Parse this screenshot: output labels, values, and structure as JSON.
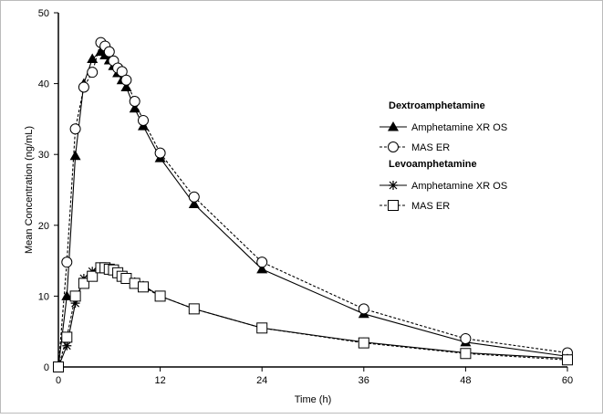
{
  "chart_data": {
    "type": "line",
    "xlabel": "Time (h)",
    "ylabel": "Mean Concentration (ng/mL)",
    "xlim": [
      0,
      60
    ],
    "ylim": [
      0,
      50
    ],
    "xticks": [
      0,
      12,
      24,
      36,
      48,
      60
    ],
    "yticks": [
      0,
      10,
      20,
      30,
      40,
      50
    ],
    "grid": false,
    "legend_placement": "right",
    "x": [
      0,
      1,
      2,
      3,
      4,
      5,
      5.5,
      6,
      6.5,
      7,
      7.5,
      8,
      9,
      10,
      12,
      16,
      24,
      36,
      48,
      60
    ],
    "groups": [
      {
        "name": "Dextroamphetamine",
        "series": [
          {
            "name": "Amphetamine XR OS",
            "marker": "filled-triangle",
            "line": "solid",
            "values": [
              0,
              10,
              29.8,
              40,
              43.5,
              44.5,
              44,
              43.3,
              42.5,
              41.5,
              40.5,
              39.5,
              36.5,
              34,
              29.5,
              23,
              13.8,
              7.5,
              3.5,
              1.5
            ]
          },
          {
            "name": "MAS ER",
            "marker": "open-circle",
            "line": "dashed",
            "values": [
              0,
              14.8,
              33.6,
              39.5,
              41.6,
              45.8,
              45.3,
              44.5,
              43.2,
              42.2,
              41.7,
              40.5,
              37.5,
              34.8,
              30.2,
              24,
              14.8,
              8.2,
              4,
              2
            ]
          }
        ]
      },
      {
        "name": "Levoamphetamine",
        "series": [
          {
            "name": "Amphetamine XR OS",
            "marker": "asterisk",
            "line": "solid",
            "values": [
              0,
              3,
              9,
              12.5,
              13.5,
              14,
              14,
              13.8,
              13.5,
              13.2,
              13,
              12.5,
              12,
              11.5,
              10,
              8.2,
              5.5,
              3.5,
              2,
              1.2
            ]
          },
          {
            "name": "MAS ER",
            "marker": "open-square",
            "line": "dashed",
            "values": [
              0,
              4.2,
              10,
              11.8,
              12.8,
              14,
              14,
              13.8,
              13.7,
              13.3,
              12.8,
              12.5,
              11.8,
              11.3,
              10,
              8.2,
              5.5,
              3.4,
              1.9,
              1.0
            ]
          }
        ]
      }
    ]
  }
}
